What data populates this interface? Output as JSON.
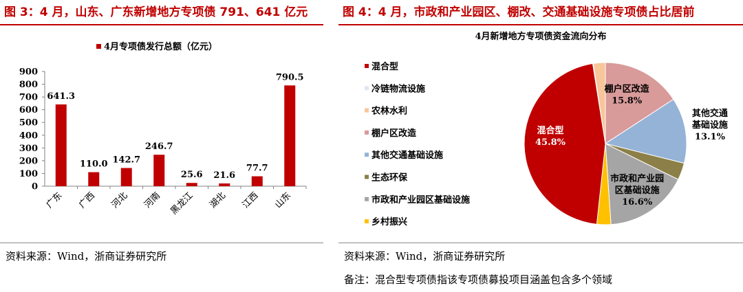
{
  "left": {
    "figure_title": "图 3：4 月，山东、广东新增地方专项债 791、641 亿元",
    "source": "资料来源：Wind，浙商证券研究所"
  },
  "right": {
    "figure_title": "图 4：4 月，市政和产业园区、棚改、交通基础设施专项债占比居前",
    "source": "资料来源：Wind，浙商证券研究所",
    "note": "备注：混合型专项债指该专项债募投项目涵盖包含多个领域"
  },
  "chart_data": [
    {
      "type": "bar",
      "title": "",
      "legend": [
        "4月专项债发行总额（亿元）"
      ],
      "legend_position": "top",
      "categories": [
        "广东",
        "广西",
        "河北",
        "河南",
        "黑龙江",
        "湖北",
        "江西",
        "山东"
      ],
      "series": [
        {
          "name": "4月专项债发行总额（亿元）",
          "values": [
            641.3,
            110.0,
            142.7,
            246.7,
            25.6,
            21.6,
            77.7,
            790.5
          ],
          "color": "#c00000"
        }
      ],
      "data_labels": [
        "641.3",
        "110.0",
        "142.7",
        "246.7",
        "25.6",
        "21.6",
        "77.7",
        "790.5"
      ],
      "ylim": [
        0,
        900
      ],
      "yticks": [
        0,
        100,
        200,
        300,
        400,
        500,
        600,
        700,
        800,
        900
      ],
      "xlabel": "",
      "ylabel": "",
      "grid": false
    },
    {
      "type": "pie",
      "title": "4月新增地方专项债资金流向分布",
      "legend_position": "left",
      "slices": [
        {
          "name": "混合型",
          "value": 45.8,
          "label": "45.8%",
          "color": "#c00000"
        },
        {
          "name": "冷链物流设施",
          "value": 0.1,
          "color": "#dfe7f1"
        },
        {
          "name": "农林水利",
          "value": 2.4,
          "color": "#f8c69a"
        },
        {
          "name": "棚户区改造",
          "value": 15.8,
          "label": "15.8%",
          "color": "#d99a9a"
        },
        {
          "name": "其他交通基础设施",
          "value": 13.1,
          "label": "13.1%",
          "color": "#95b3d7"
        },
        {
          "name": "生态环保",
          "value": 3.4,
          "color": "#8c8048"
        },
        {
          "name": "市政和产业园区基础设施",
          "value": 16.6,
          "label": "16.6%",
          "color": "#a5a5a5"
        },
        {
          "name": "乡村振兴",
          "value": 2.8,
          "color": "#ffc000"
        }
      ],
      "slice_label_names": {
        "混合型": "混合型",
        "棚户区改造": "棚户区改造",
        "其他交通基础设施": [
          "其他交通",
          "基础设施"
        ],
        "市政和产业园区基础设施": [
          "市政和产业园",
          "区基础设施"
        ]
      }
    }
  ]
}
